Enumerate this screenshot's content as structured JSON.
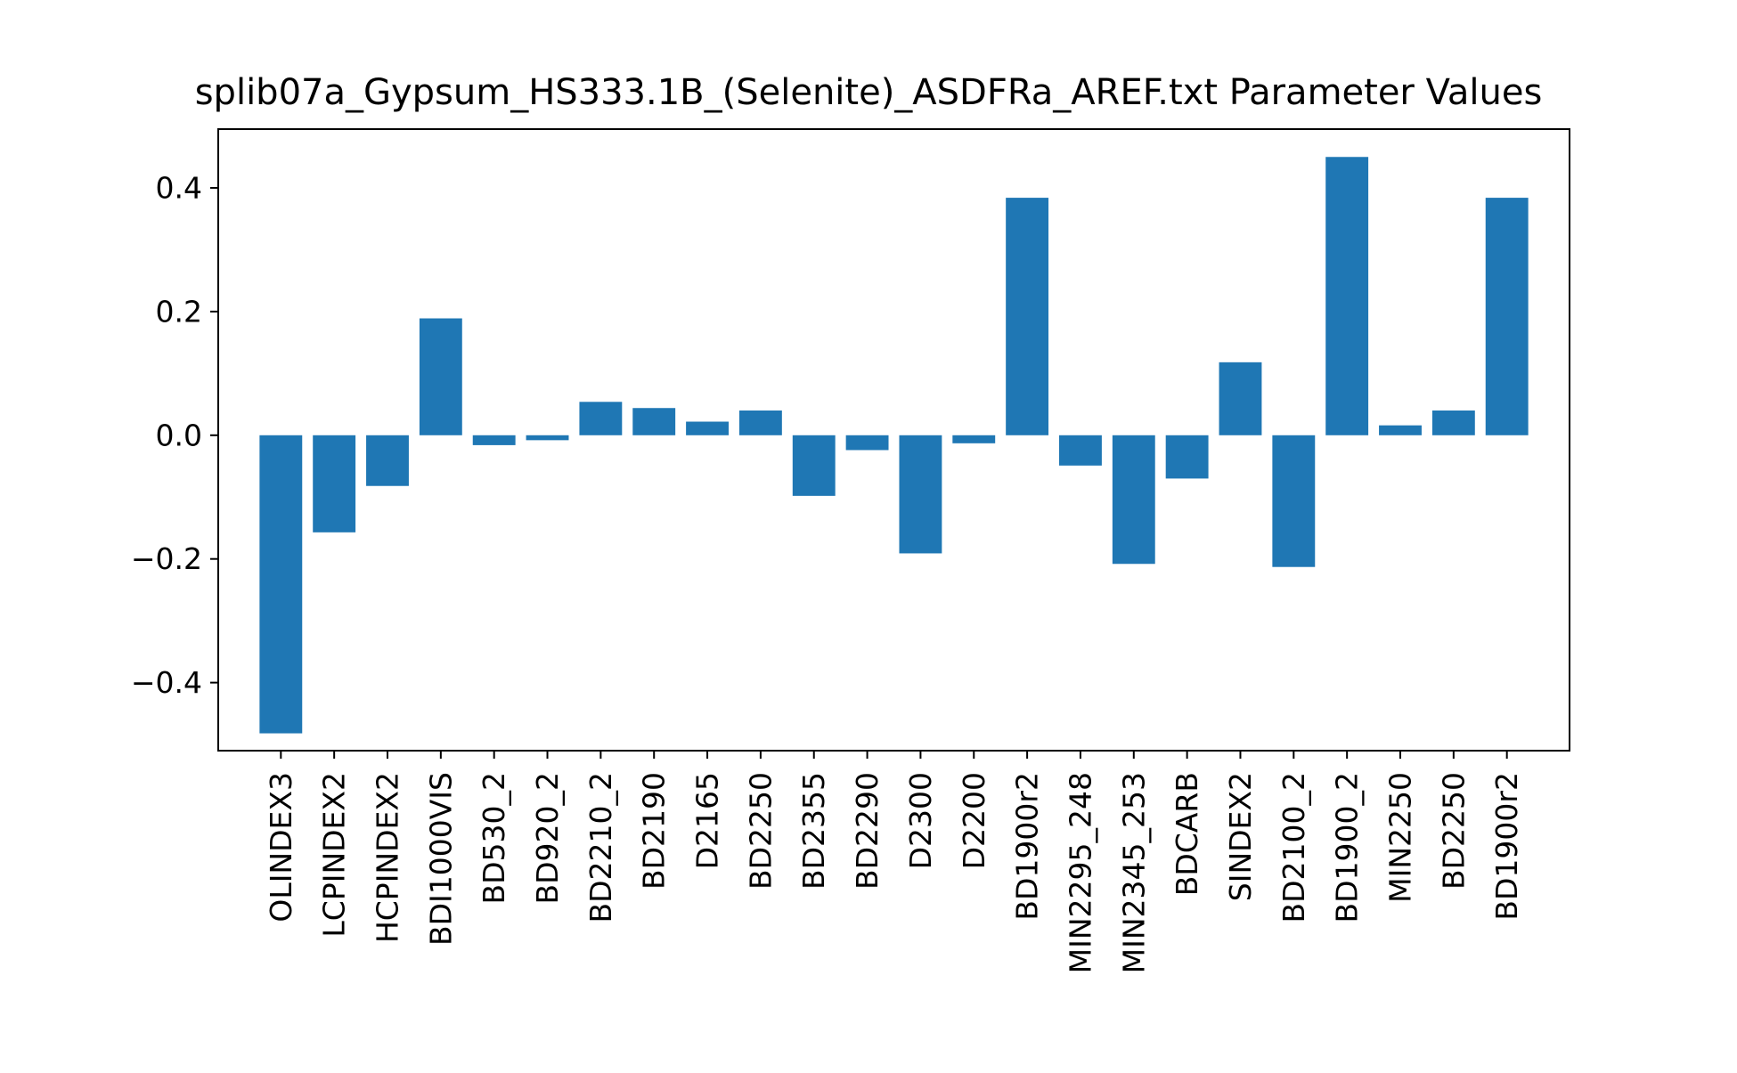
{
  "chart_data": {
    "type": "bar",
    "title": "splib07a_Gypsum_HS333.1B_(Selenite)_ASDFRa_AREF.txt Parameter Values",
    "xlabel": "",
    "ylabel": "",
    "ylim": [
      -0.51,
      0.495
    ],
    "yticks": [
      -0.4,
      -0.2,
      0.0,
      0.2,
      0.4
    ],
    "ytick_labels": [
      "−0.4",
      "−0.2",
      "0.0",
      "0.2",
      "0.4"
    ],
    "categories": [
      "OLINDEX3",
      "LCPINDEX2",
      "HCPINDEX2",
      "BDI1000VIS",
      "BD530_2",
      "BD920_2",
      "BD2210_2",
      "BD2190",
      "D2165",
      "BD2250",
      "BD2355",
      "BD2290",
      "D2300",
      "D2200",
      "BD1900r2",
      "MIN2295_248",
      "MIN2345_253",
      "BDCARB",
      "SINDEX2",
      "BD2100_2",
      "BD1900_2",
      "MIN2250",
      "BD2250",
      "BD1900r2"
    ],
    "values": [
      -0.482,
      -0.157,
      -0.082,
      0.189,
      -0.016,
      -0.008,
      0.054,
      0.044,
      0.022,
      0.04,
      -0.098,
      -0.024,
      -0.191,
      -0.013,
      0.384,
      -0.049,
      -0.208,
      -0.07,
      0.118,
      -0.213,
      0.45,
      0.016,
      0.04,
      0.384
    ],
    "bar_color": "#1f77b4",
    "grid": false,
    "legend": "none"
  }
}
